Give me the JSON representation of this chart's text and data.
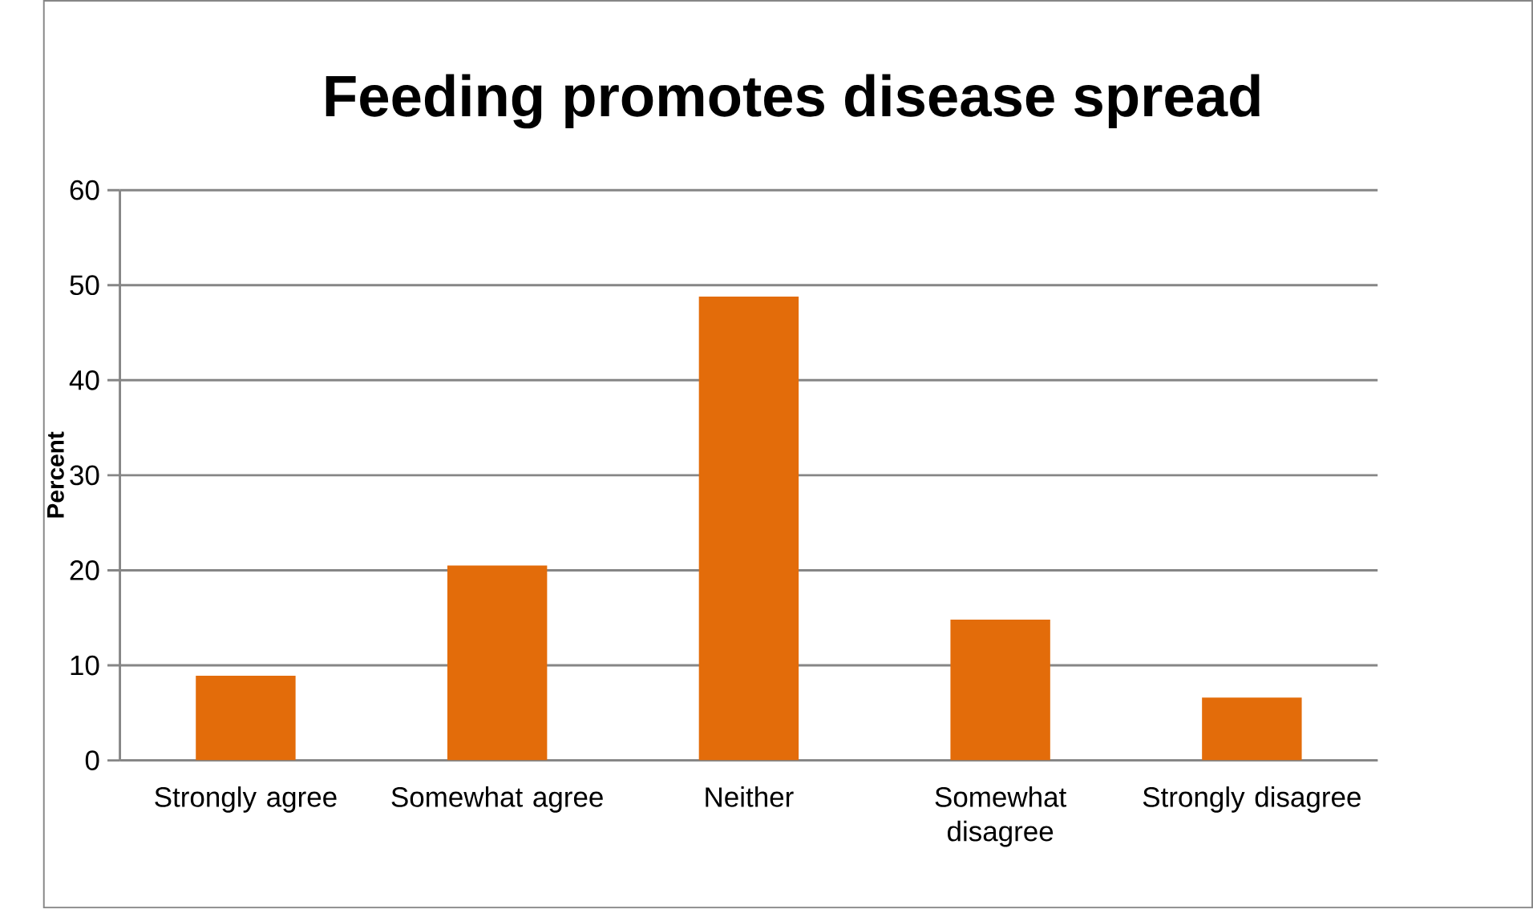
{
  "chart_data": {
    "type": "bar",
    "title": "Feeding promotes disease spread",
    "ylabel": "Percent",
    "categories": [
      "Strongly agree",
      "Somewhat agree",
      "Neither",
      "Somewhat disagree",
      "Strongly disagree"
    ],
    "values": [
      8.9,
      20.5,
      48.8,
      14.8,
      6.6
    ],
    "color": "#e36c0a",
    "ylim": [
      0,
      60
    ],
    "yticks": [
      0,
      10,
      20,
      30,
      40,
      50,
      60
    ],
    "grid": "y"
  }
}
